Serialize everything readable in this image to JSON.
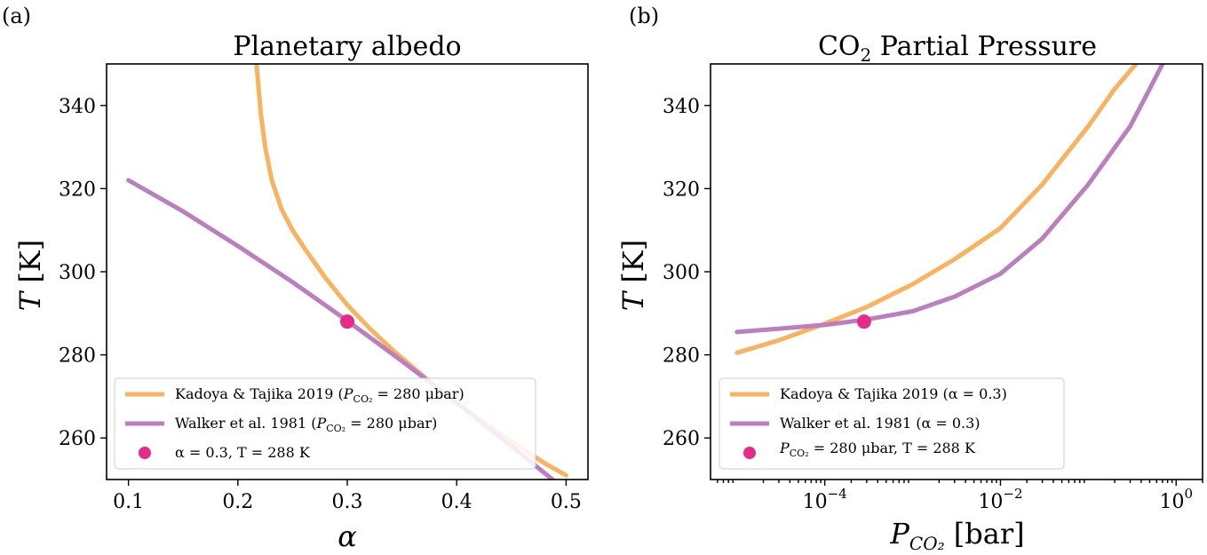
{
  "chart_data": [
    {
      "type": "line",
      "panel_label": "(a)",
      "title": "Planetary albedo",
      "xlabel": "α",
      "ylabel": "T [K]",
      "xlim": [
        0.08,
        0.52
      ],
      "ylim": [
        250,
        350
      ],
      "xticks": [
        0.1,
        0.2,
        0.3,
        0.4,
        0.5
      ],
      "xtick_labels": [
        "0.1",
        "0.2",
        "0.3",
        "0.4",
        "0.5"
      ],
      "yticks": [
        260,
        280,
        300,
        320,
        340
      ],
      "ytick_labels": [
        "260",
        "280",
        "300",
        "320",
        "340"
      ],
      "legend_position": "lower-left",
      "series": [
        {
          "name": "Kadoya & Tajika 2019 (P_CO2 = 280 μbar)",
          "color": "#f9b25e",
          "x": [
            0.217,
            0.221,
            0.225,
            0.231,
            0.24,
            0.25,
            0.26,
            0.28,
            0.3,
            0.32,
            0.34,
            0.36,
            0.38,
            0.4,
            0.42,
            0.44,
            0.46,
            0.48,
            0.5
          ],
          "y": [
            350,
            338,
            330,
            322,
            315,
            310,
            306,
            298.5,
            292,
            286.5,
            281.5,
            277,
            272.5,
            268.5,
            264.5,
            261,
            257.5,
            254,
            251
          ]
        },
        {
          "name": "Walker et al. 1981 (P_CO2 = 280 μbar)",
          "color": "#bb7fc0",
          "x": [
            0.1,
            0.15,
            0.2,
            0.25,
            0.3,
            0.35,
            0.4,
            0.45,
            0.49
          ],
          "y": [
            322,
            314.5,
            306.2,
            297.5,
            288.2,
            278.5,
            268.5,
            258,
            249.5
          ]
        }
      ],
      "points": [
        {
          "name": "α = 0.3, T = 288 K",
          "color": "#e7298a",
          "x": 0.3,
          "y": 288
        }
      ]
    },
    {
      "type": "line",
      "panel_label": "(b)",
      "title": "CO₂ Partial Pressure",
      "xlabel": "P_CO2 [bar]",
      "ylabel": "T [K]",
      "xscale": "log",
      "xlim": [
        5e-06,
        2
      ],
      "ylim": [
        250,
        350
      ],
      "xticks": [
        0.0001,
        0.01,
        1
      ],
      "xtick_labels": [
        "10",
        "10",
        "10"
      ],
      "xtick_exponents": [
        "−4",
        "−2",
        "0"
      ],
      "yticks": [
        260,
        280,
        300,
        320,
        340
      ],
      "ytick_labels": [
        "260",
        "280",
        "300",
        "320",
        "340"
      ],
      "legend_position": "lower-left",
      "series": [
        {
          "name": "Kadoya & Tajika 2019 (α = 0.3)",
          "color": "#f9b25e",
          "x": [
            1e-05,
            3e-05,
            0.0001,
            0.0003,
            0.001,
            0.003,
            0.01,
            0.03,
            0.1,
            0.2,
            0.35
          ],
          "y": [
            280.5,
            283.5,
            287.5,
            291.5,
            297,
            303,
            310.5,
            321,
            335,
            344,
            350
          ]
        },
        {
          "name": "Walker et al. 1981 (α = 0.3)",
          "color": "#bb7fc0",
          "x": [
            1e-05,
            3e-05,
            0.0001,
            0.0003,
            0.001,
            0.003,
            0.01,
            0.03,
            0.1,
            0.3,
            0.5,
            0.7
          ],
          "y": [
            285.5,
            286.3,
            287.2,
            288.5,
            290.5,
            294,
            299.5,
            308,
            321,
            335,
            344,
            350
          ]
        }
      ],
      "points": [
        {
          "name": "P_CO2 = 280 μbar, T = 288 K",
          "color": "#e7298a",
          "x": 0.00028,
          "y": 288
        }
      ]
    }
  ],
  "legend_text": {
    "a_kadoya_pre": "Kadoya & Tajika 2019 (",
    "a_kadoya_post": " = 280 μbar)",
    "a_walker_pre": "Walker et al. 1981 (",
    "a_walker_post": " = 280 μbar)",
    "a_point": "α = 0.3, T = 288 K",
    "b_kadoya": "Kadoya & Tajika 2019 (α = 0.3)",
    "b_walker": "Walker et al. 1981 (α = 0.3)",
    "b_point_post": " = 280 μbar, T = 288 K",
    "p_symbol": "P",
    "p_sub": "CO₂"
  },
  "title_b_main": "CO",
  "title_b_sub": "2",
  "title_b_rest": " Partial Pressure",
  "xlabel_b_symbol": "P",
  "xlabel_b_sub": "CO₂",
  "xlabel_b_unit": " [bar]",
  "ylabel_symbol": "T",
  "ylabel_unit": " [K]"
}
